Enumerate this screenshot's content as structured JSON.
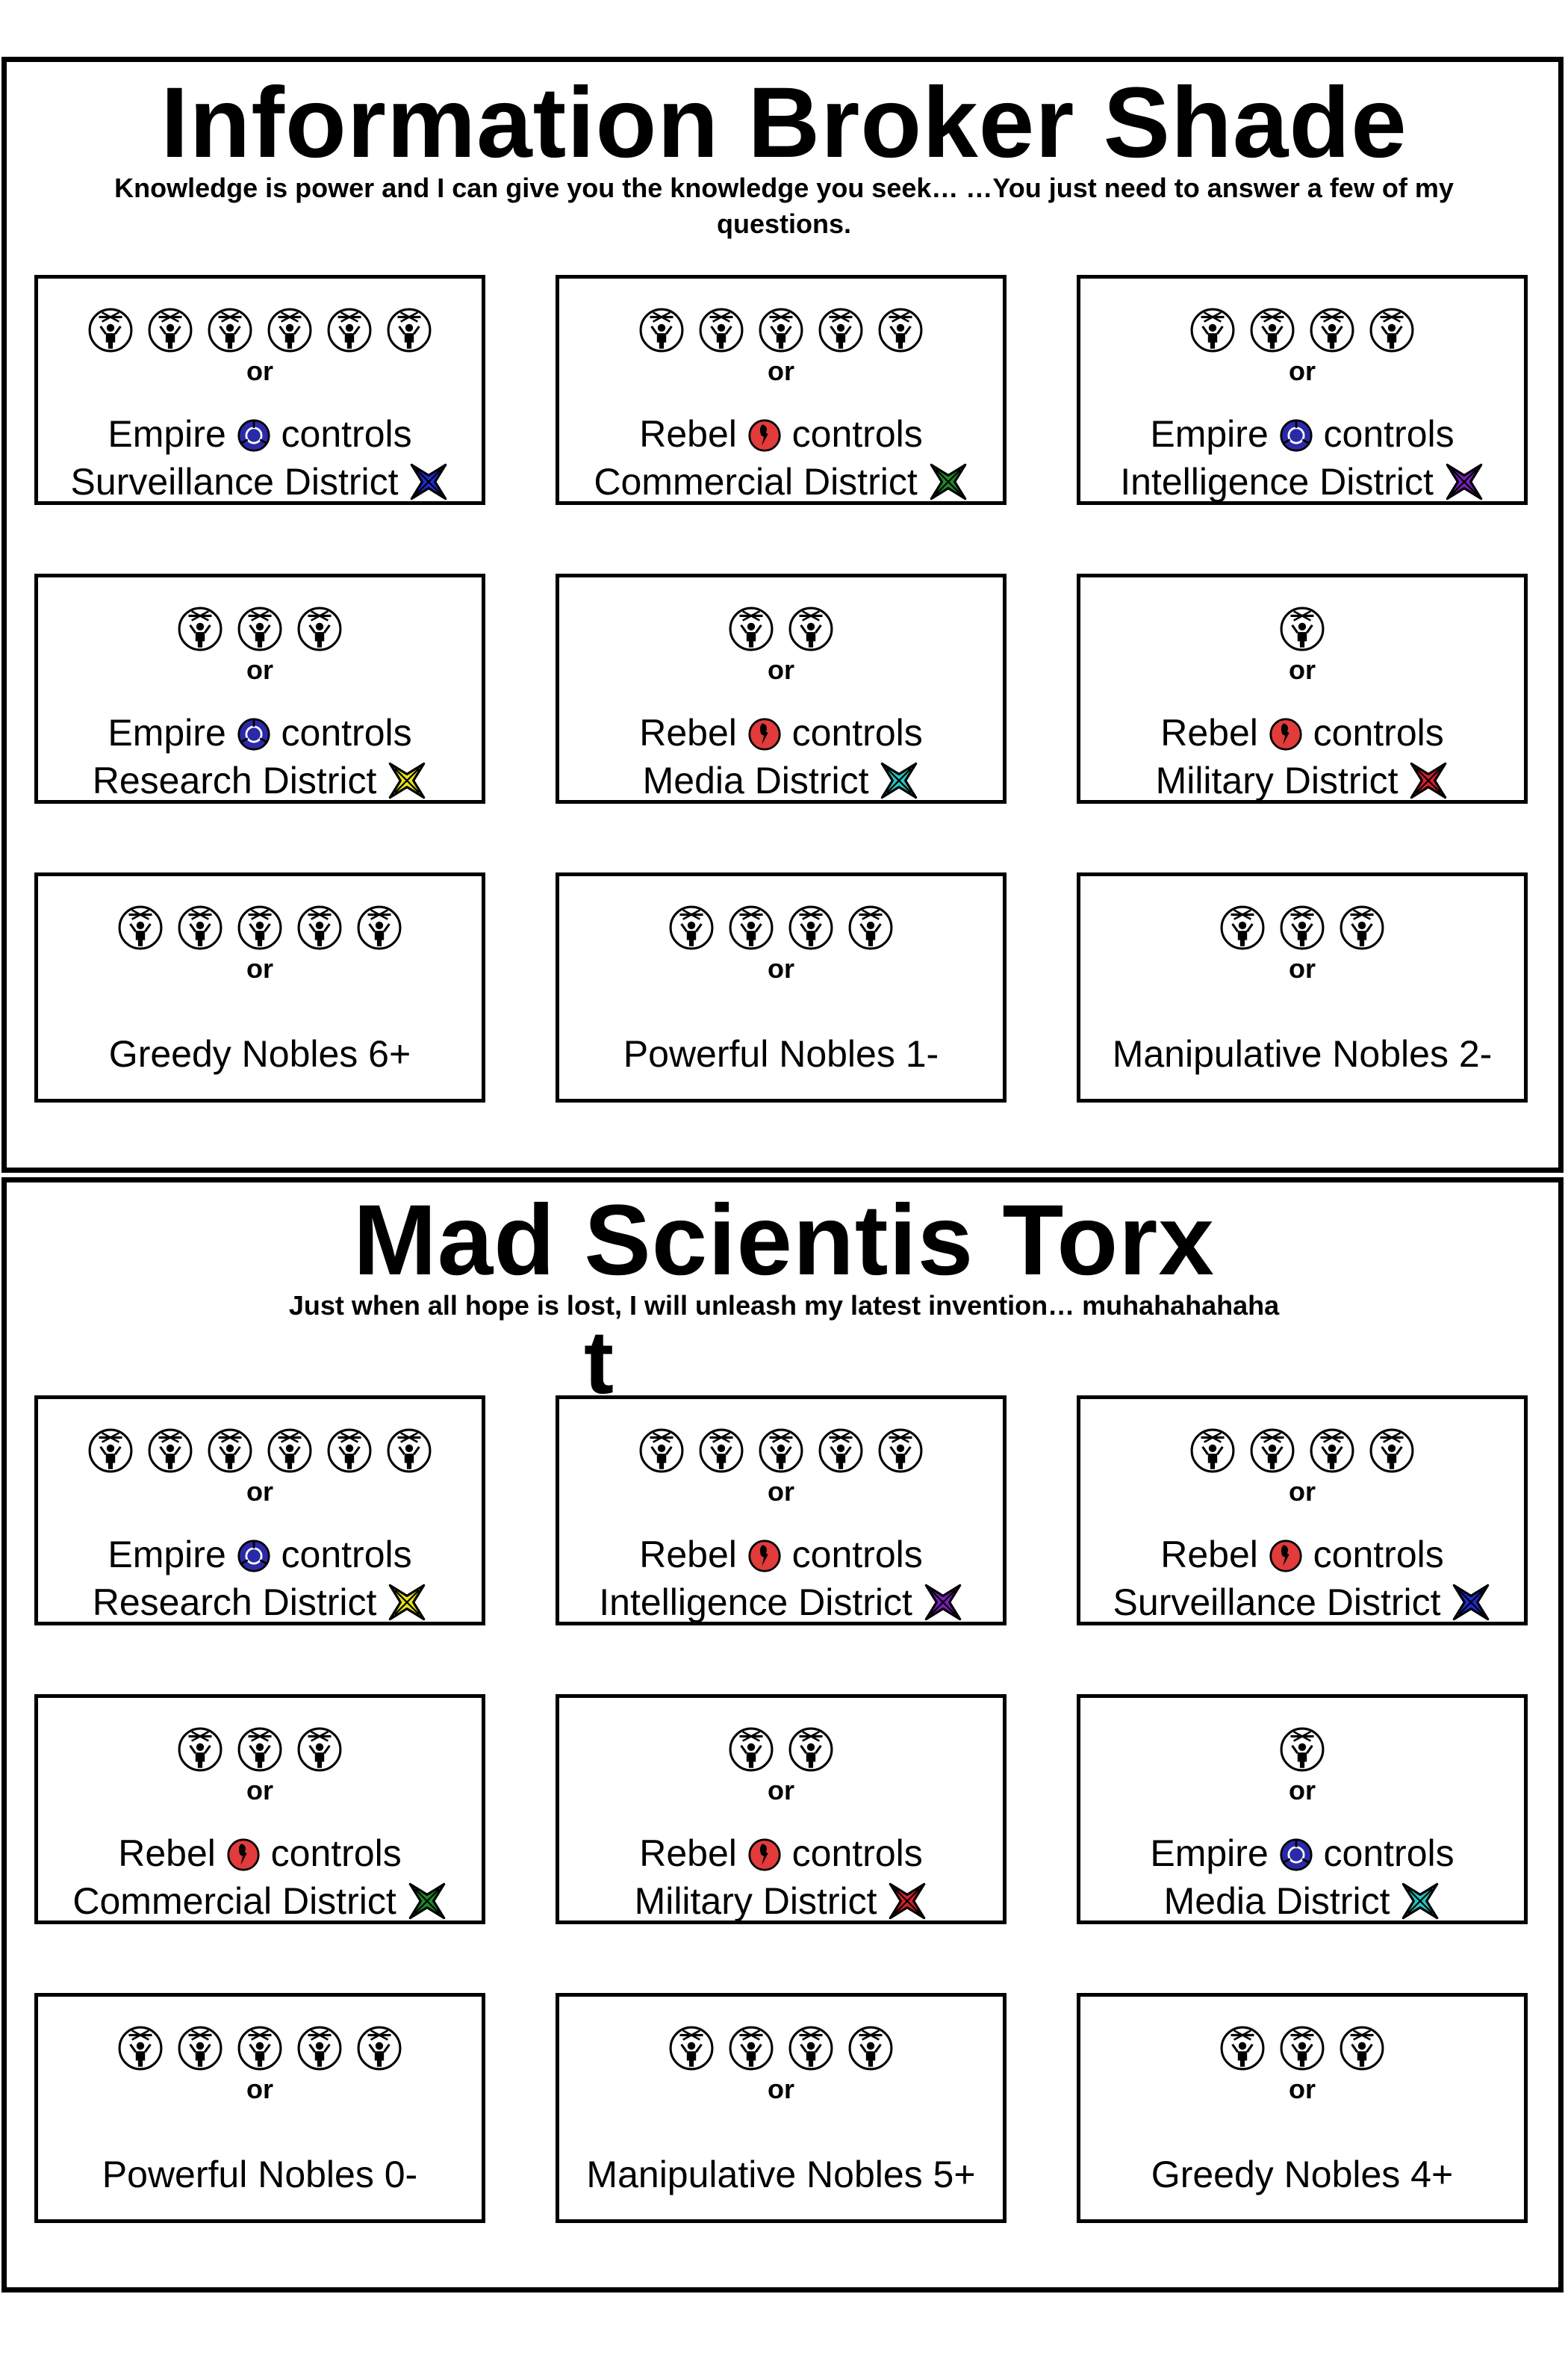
{
  "sections": [
    {
      "title": "Information Broker Shade",
      "subtitle": "Knowledge is power and I can give you the knowledge you seek… …You just need to answer a few of my questions.",
      "cards": [
        {
          "tokens": 6,
          "or": "or",
          "faction": "Empire",
          "verb": "controls",
          "district": "Surveillance District",
          "icon_color": "#1e2bd6"
        },
        {
          "tokens": 5,
          "or": "or",
          "faction": "Rebel",
          "verb": "controls",
          "district": "Commercial District",
          "icon_color": "#1f8a2c"
        },
        {
          "tokens": 4,
          "or": "or",
          "faction": "Empire",
          "verb": "controls",
          "district": "Intelligence District",
          "icon_color": "#7a1fb8"
        },
        {
          "tokens": 3,
          "or": "or",
          "faction": "Empire",
          "verb": "controls",
          "district": "Research District",
          "icon_color": "#e6e21a"
        },
        {
          "tokens": 2,
          "or": "or",
          "faction": "Rebel",
          "verb": "controls",
          "district": "Media District",
          "icon_color": "#25c6c0"
        },
        {
          "tokens": 1,
          "or": "or",
          "faction": "Rebel",
          "verb": "controls",
          "district": "Military District",
          "icon_color": "#d6202a"
        },
        {
          "tokens": 5,
          "or": "or",
          "text": "Greedy Nobles 6+"
        },
        {
          "tokens": 4,
          "or": "or",
          "text": "Powerful Nobles 1-"
        },
        {
          "tokens": 3,
          "or": "or",
          "text": "Manipulative Nobles 2-"
        }
      ]
    },
    {
      "title": "Mad Scientis Torx",
      "stray_letter": "t",
      "subtitle": "Just when all hope is lost, I will unleash my latest invention… muhahahahaha",
      "cards": [
        {
          "tokens": 6,
          "or": "or",
          "faction": "Empire",
          "verb": "controls",
          "district": "Research District",
          "icon_color": "#e6e21a"
        },
        {
          "tokens": 5,
          "or": "or",
          "faction": "Rebel",
          "verb": "controls",
          "district": "Intelligence District",
          "icon_color": "#7a1fb8"
        },
        {
          "tokens": 4,
          "or": "or",
          "faction": "Rebel",
          "verb": "controls",
          "district": "Surveillance District",
          "icon_color": "#1e2bd6"
        },
        {
          "tokens": 3,
          "or": "or",
          "faction": "Rebel",
          "verb": "controls",
          "district": "Commercial District",
          "icon_color": "#1f8a2c"
        },
        {
          "tokens": 2,
          "or": "or",
          "faction": "Rebel",
          "verb": "controls",
          "district": "Military District",
          "icon_color": "#d6202a"
        },
        {
          "tokens": 1,
          "or": "or",
          "faction": "Empire",
          "verb": "controls",
          "district": "Media District",
          "icon_color": "#25c6c0"
        },
        {
          "tokens": 5,
          "or": "or",
          "text": "Powerful Nobles 0-"
        },
        {
          "tokens": 4,
          "or": "or",
          "text": "Manipulative Nobles 5+"
        },
        {
          "tokens": 3,
          "or": "or",
          "text": "Greedy Nobles 4+"
        }
      ]
    }
  ],
  "faction_colors": {
    "Empire": "#3a3ad6",
    "Rebel": "#e23b3b"
  },
  "icons": {
    "token": "puppet-token-icon",
    "empire": "empire-faction-icon",
    "rebel": "rebel-faction-icon",
    "district": "district-star-icon"
  }
}
